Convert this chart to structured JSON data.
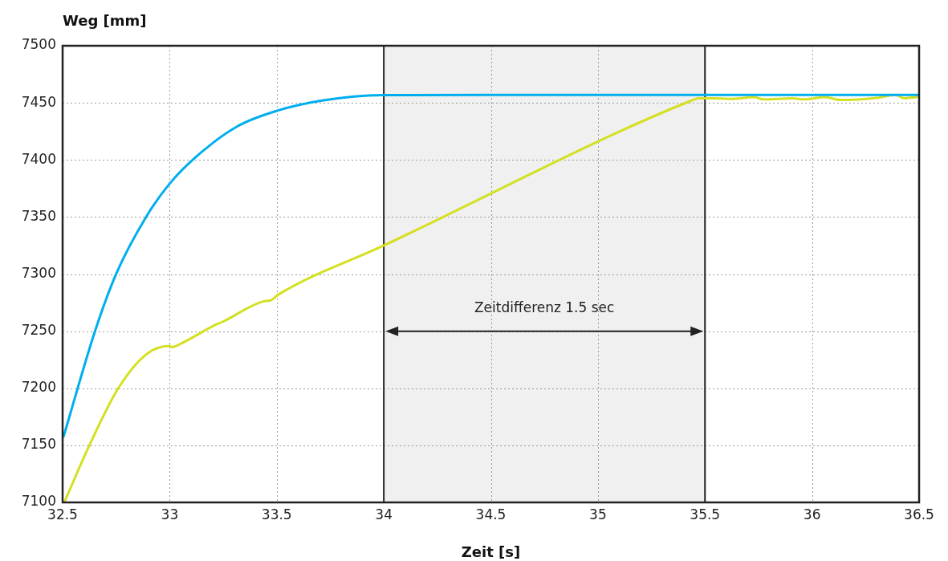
{
  "chart_data": {
    "type": "line",
    "xlabel": "Zeit [s]",
    "ylabel": "Weg [mm]",
    "xlim": [
      32.5,
      36.5
    ],
    "xticks": [
      32.5,
      33,
      33.5,
      34,
      34.5,
      35,
      35.5,
      36,
      36.5
    ],
    "ylim": [
      7100,
      7500
    ],
    "yticks": [
      7100,
      7150,
      7200,
      7250,
      7300,
      7350,
      7400,
      7450,
      7500
    ],
    "grid": true,
    "legend": false,
    "marker": "none",
    "line_style": "solid",
    "bands": [
      {
        "axis": "x",
        "from": 34,
        "to": 35.5,
        "color": "#f0f0f0"
      }
    ],
    "annotations": [
      "Zeitdifferenz 1.5 sec"
    ],
    "series": [
      {
        "color": "#00aeef",
        "x": [
          32.505,
          32.653,
          32.752,
          32.893,
          32.999,
          33.119,
          33.317,
          33.5,
          33.712,
          33.994,
          34.5,
          35,
          35.5,
          36,
          36.5
        ],
        "values": [
          7158,
          7251,
          7301,
          7351,
          7379,
          7402,
          7429.5,
          7443,
          7452,
          7456.8,
          7457,
          7457,
          7457,
          7457,
          7457
        ]
      },
      {
        "color": "#d4e021",
        "x": [
          32.51,
          32.625,
          32.76,
          32.893,
          33,
          33.01,
          33.062,
          33.218,
          33.245,
          33.436,
          33.472,
          33.507,
          34,
          35.43,
          35.47,
          35.54,
          35.62,
          35.73,
          35.77,
          35.91,
          35.96,
          36.06,
          36.13,
          36.31,
          36.39,
          36.43,
          36.49
        ],
        "values": [
          7101,
          7150,
          7200,
          7230,
          7237,
          7236,
          7240,
          7256,
          7258,
          7276,
          7277,
          7282,
          7325,
          7451.5,
          7454,
          7454,
          7453.4,
          7455,
          7453,
          7454,
          7453,
          7455,
          7452.5,
          7454.5,
          7457,
          7454,
          7455
        ]
      }
    ]
  }
}
